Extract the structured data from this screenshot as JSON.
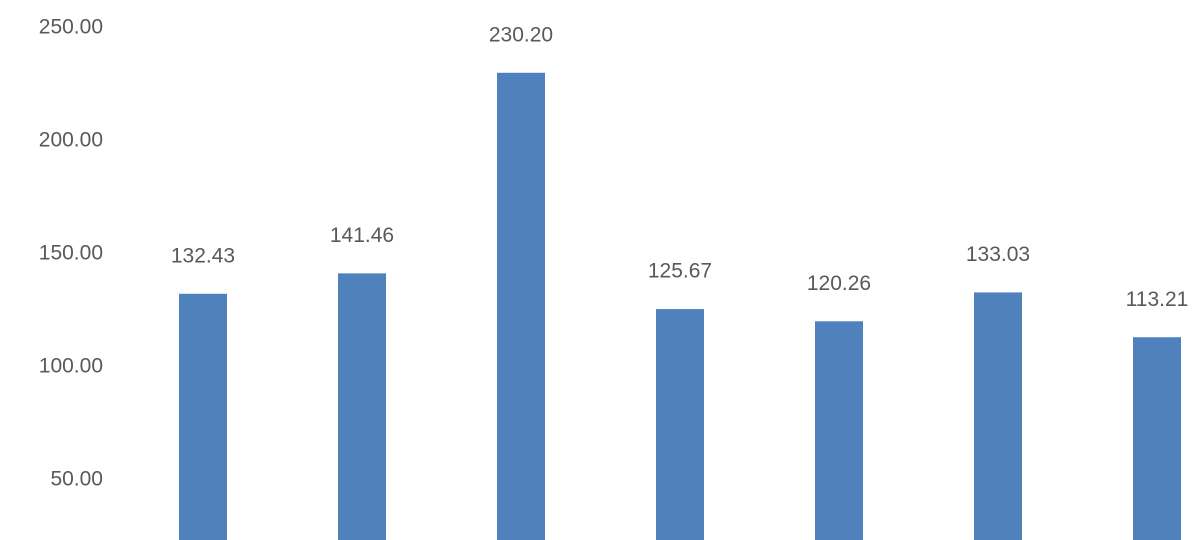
{
  "chart_data": {
    "type": "bar",
    "categories": [
      null,
      null,
      null,
      null,
      null,
      null,
      null
    ],
    "values": [
      132.43,
      141.46,
      230.2,
      125.67,
      120.26,
      133.03,
      113.21
    ],
    "value_labels": [
      "132.43",
      "141.46",
      "230.20",
      "125.67",
      "120.26",
      "133.03",
      "113.21"
    ],
    "color": "#4f81bd",
    "ylim": [
      23.5,
      262.4
    ],
    "yticks": [
      {
        "value": 50,
        "label": "50.00"
      },
      {
        "value": 100,
        "label": "100.00"
      },
      {
        "value": 150,
        "label": "150.00"
      },
      {
        "value": 200,
        "label": "200.00"
      },
      {
        "value": 250,
        "label": "250.00"
      }
    ]
  }
}
